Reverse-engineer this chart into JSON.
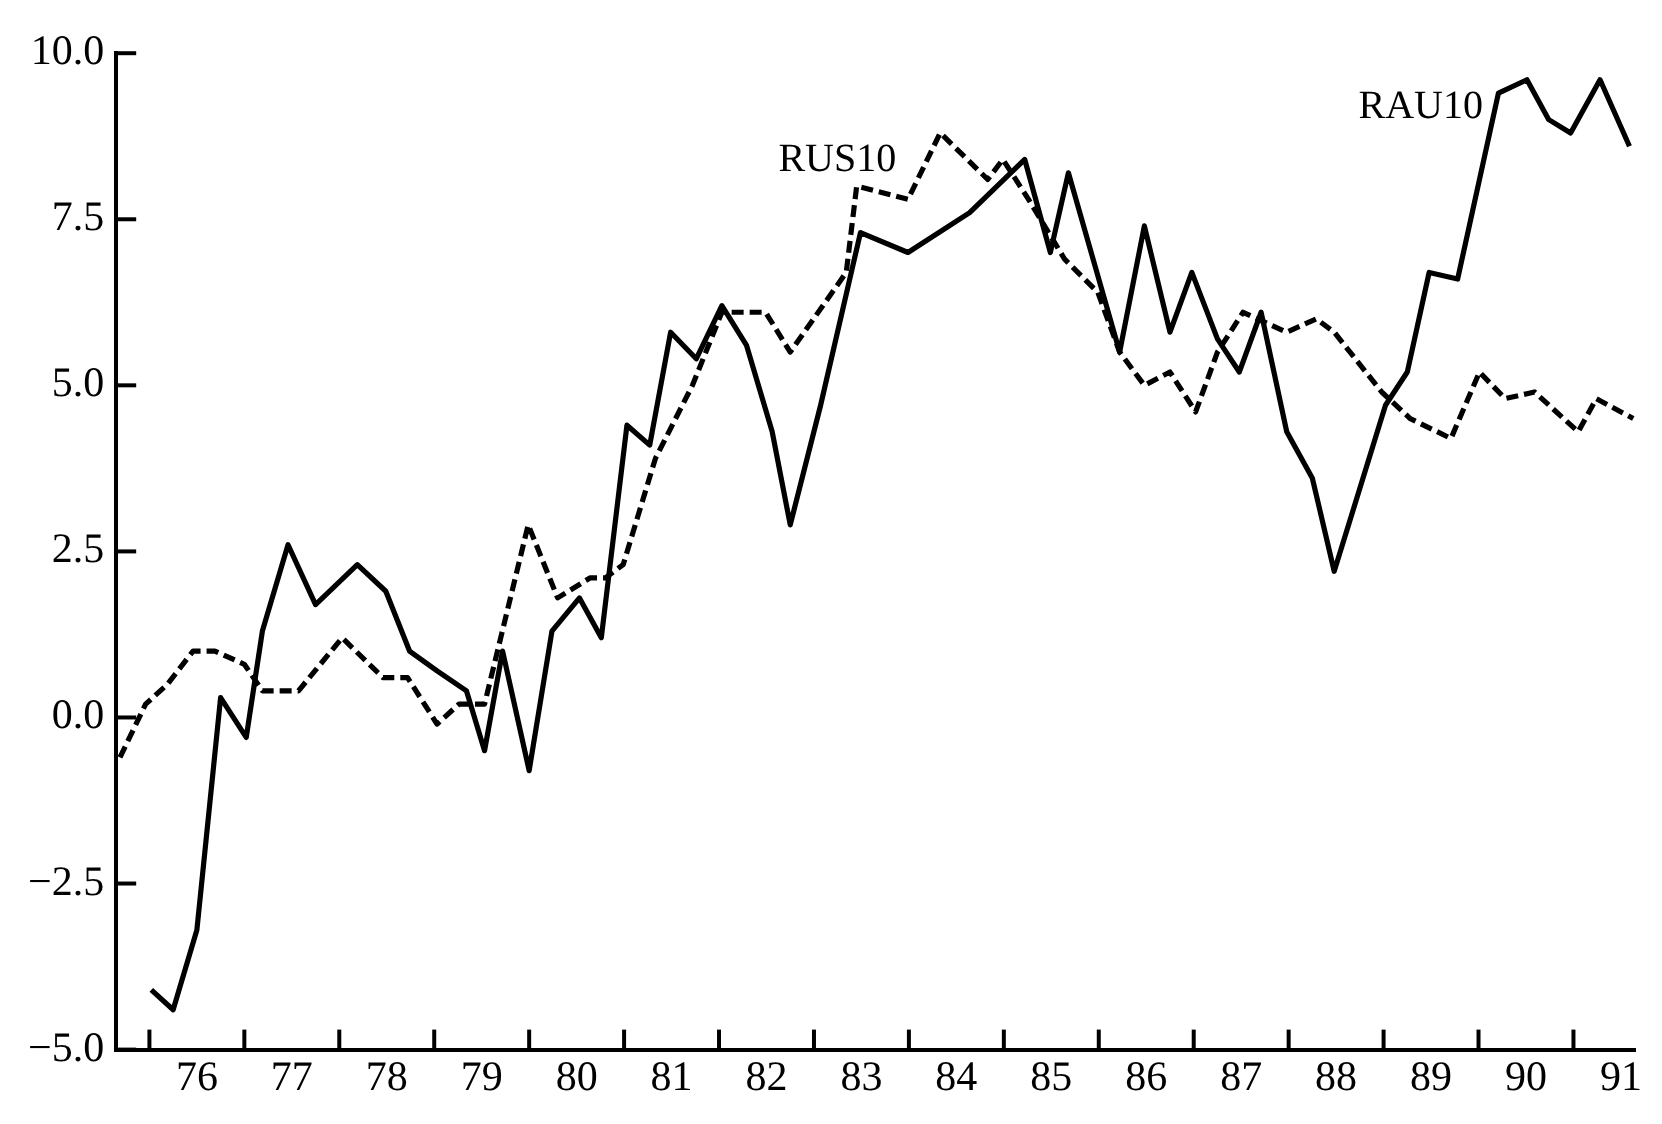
{
  "chart_data": {
    "type": "line",
    "xlim": [
      75.15,
      91.15
    ],
    "xticks": [
      {
        "value": 75.5,
        "label": null
      },
      {
        "value": 76.5,
        "label": null
      },
      {
        "value": 77.5,
        "label": null
      },
      {
        "value": 78.5,
        "label": null
      },
      {
        "value": 79.5,
        "label": null
      },
      {
        "value": 80.5,
        "label": null
      },
      {
        "value": 81.5,
        "label": null
      },
      {
        "value": 82.5,
        "label": null
      },
      {
        "value": 83.5,
        "label": null
      },
      {
        "value": 84.5,
        "label": null
      },
      {
        "value": 85.5,
        "label": null
      },
      {
        "value": 86.5,
        "label": null
      },
      {
        "value": 87.5,
        "label": null
      },
      {
        "value": 88.5,
        "label": null
      },
      {
        "value": 89.5,
        "label": null
      },
      {
        "value": 90.5,
        "label": null
      },
      76,
      77,
      78,
      79,
      80,
      81,
      82,
      83,
      84,
      85,
      86,
      87,
      88,
      89,
      90,
      91
    ],
    "ylim": [
      -5,
      10
    ],
    "yticks": [
      {
        "value": -5,
        "label": "−5.0"
      },
      {
        "value": -2.5,
        "label": "−2.5"
      },
      {
        "value": 0,
        "label": "0.0"
      },
      {
        "value": 2.5,
        "label": "2.5"
      },
      {
        "value": 5,
        "label": "5.0"
      },
      {
        "value": 7.5,
        "label": "7.5"
      },
      {
        "value": 10,
        "label": "10.0"
      }
    ],
    "grid": false,
    "legend": false,
    "marker": "none",
    "series": [
      {
        "name": "RAU10",
        "color": "#000000",
        "line_style": "solid",
        "x": [
          75.52,
          75.75,
          76.0,
          76.25,
          76.52,
          76.69,
          76.96,
          77.25,
          77.69,
          77.99,
          78.24,
          78.53,
          78.84,
          79.03,
          79.22,
          79.5,
          79.74,
          80.03,
          80.26,
          80.53,
          80.77,
          80.99,
          81.26,
          81.53,
          81.79,
          82.06,
          82.25,
          82.57,
          82.99,
          83.49,
          84.14,
          84.72,
          84.99,
          85.18,
          85.72,
          85.98,
          86.25,
          86.48,
          86.75,
          86.98,
          87.21,
          87.48,
          87.75,
          87.98,
          88.52,
          88.75,
          88.98,
          89.28,
          89.71,
          90.01,
          90.24,
          90.47,
          90.78,
          91.09
        ],
        "values": [
          -4.1,
          -4.4,
          -3.2,
          0.3,
          -0.3,
          1.3,
          2.6,
          1.7,
          2.3,
          1.9,
          1.0,
          0.7,
          0.4,
          -0.5,
          1.0,
          -0.8,
          1.3,
          1.8,
          1.2,
          4.4,
          4.1,
          5.8,
          5.4,
          6.2,
          5.6,
          4.3,
          2.9,
          4.7,
          7.3,
          7.0,
          7.6,
          8.4,
          7.0,
          8.2,
          5.5,
          7.4,
          5.8,
          6.7,
          5.7,
          5.2,
          6.1,
          4.3,
          3.6,
          2.2,
          4.7,
          5.2,
          6.7,
          6.6,
          9.4,
          9.6,
          9.0,
          8.8,
          9.6,
          8.6
        ]
      },
      {
        "name": "RUS10",
        "color": "#000000",
        "line_style": "dashed",
        "x": [
          75.19,
          75.46,
          75.69,
          75.96,
          76.19,
          76.5,
          76.69,
          77.07,
          77.53,
          77.96,
          78.22,
          78.53,
          78.76,
          79.03,
          79.49,
          79.8,
          80.14,
          80.3,
          80.49,
          80.83,
          81.22,
          81.53,
          81.99,
          82.25,
          82.84,
          82.95,
          83.49,
          83.83,
          84.33,
          84.49,
          84.76,
          85.14,
          85.49,
          85.72,
          85.98,
          86.25,
          86.52,
          86.75,
          87.02,
          87.48,
          87.79,
          87.98,
          88.48,
          88.78,
          89.21,
          89.51,
          89.78,
          90.09,
          90.55,
          90.74,
          91.13
        ],
        "values": [
          -0.6,
          0.2,
          0.5,
          1.0,
          1.0,
          0.8,
          0.4,
          0.4,
          1.2,
          0.6,
          0.6,
          -0.1,
          0.2,
          0.2,
          2.9,
          1.8,
          2.1,
          2.1,
          2.3,
          3.9,
          5.0,
          6.1,
          6.1,
          5.5,
          6.7,
          8.0,
          7.8,
          8.8,
          8.1,
          8.4,
          7.8,
          6.9,
          6.4,
          5.5,
          5.0,
          5.2,
          4.6,
          5.5,
          6.1,
          5.8,
          6.0,
          5.8,
          4.9,
          4.5,
          4.2,
          5.2,
          4.8,
          4.9,
          4.3,
          4.8,
          4.5
        ]
      }
    ]
  }
}
